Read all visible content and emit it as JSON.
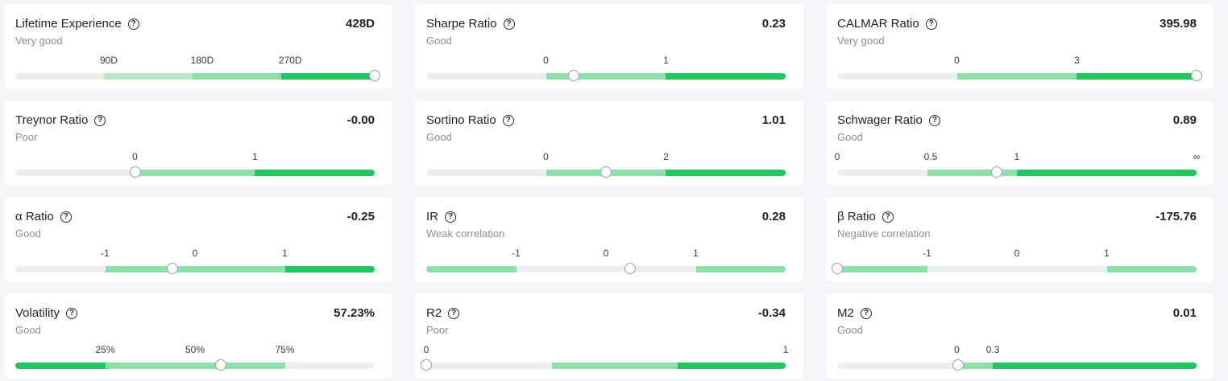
{
  "help_glyph": "?",
  "colors": {
    "background": "#f5f6f9",
    "track": "#eceef2",
    "light_green": "#b8e6c6",
    "mid_green": "#8fdfac",
    "strong_green": "#22c55e"
  },
  "metrics": [
    {
      "id": "lifetime-experience",
      "name": "Lifetime Experience",
      "value": "428D",
      "rating": "Very good",
      "ticks": [
        "90D",
        "180D",
        "270D"
      ],
      "thumb": 1.0
    },
    {
      "id": "sharpe-ratio",
      "name": "Sharpe Ratio",
      "value": "0.23",
      "rating": "Good",
      "ticks": [
        "0",
        "1"
      ],
      "thumb": 0.411
    },
    {
      "id": "calmar-ratio",
      "name": "CALMAR Ratio",
      "value": "395.98",
      "rating": "Very good",
      "ticks": [
        "0",
        "3"
      ],
      "thumb": 1.0
    },
    {
      "id": "treynor-ratio",
      "name": "Treynor Ratio",
      "value": "-0.00",
      "rating": "Poor",
      "ticks": [
        "0",
        "1"
      ],
      "thumb": 0.333
    },
    {
      "id": "sortino-ratio",
      "name": "Sortino Ratio",
      "value": "1.01",
      "rating": "Good",
      "ticks": [
        "0",
        "2"
      ],
      "thumb": 0.5
    },
    {
      "id": "schwager-ratio",
      "name": "Schwager Ratio",
      "value": "0.89",
      "rating": "Good",
      "ticks": [
        "0",
        "0.5",
        "1",
        "∞"
      ],
      "thumb": 0.445
    },
    {
      "id": "alpha-ratio",
      "name": "α Ratio",
      "value": "-0.25",
      "rating": "Good",
      "ticks": [
        "-1",
        "0",
        "1"
      ],
      "thumb": 0.438
    },
    {
      "id": "ir",
      "name": "IR",
      "value": "0.28",
      "rating": "Weak correlation",
      "ticks": [
        "-1",
        "0",
        "1"
      ],
      "thumb": 0.568
    },
    {
      "id": "beta-ratio",
      "name": "β Ratio",
      "value": "-175.76",
      "rating": "Negative correlation",
      "ticks": [
        "-1",
        "0",
        "1"
      ],
      "thumb": 0.0
    },
    {
      "id": "volatility",
      "name": "Volatility",
      "value": "57.23%",
      "rating": "Good",
      "ticks": [
        "25%",
        "50%",
        "75%"
      ],
      "thumb": 0.572
    },
    {
      "id": "r2",
      "name": "R2",
      "value": "-0.34",
      "rating": "Poor",
      "ticks": [
        "0",
        "1"
      ],
      "thumb": 0.0
    },
    {
      "id": "m2",
      "name": "M2",
      "value": "0.01",
      "rating": "Good",
      "ticks": [
        "0",
        "0.3"
      ],
      "thumb": 0.337
    }
  ]
}
